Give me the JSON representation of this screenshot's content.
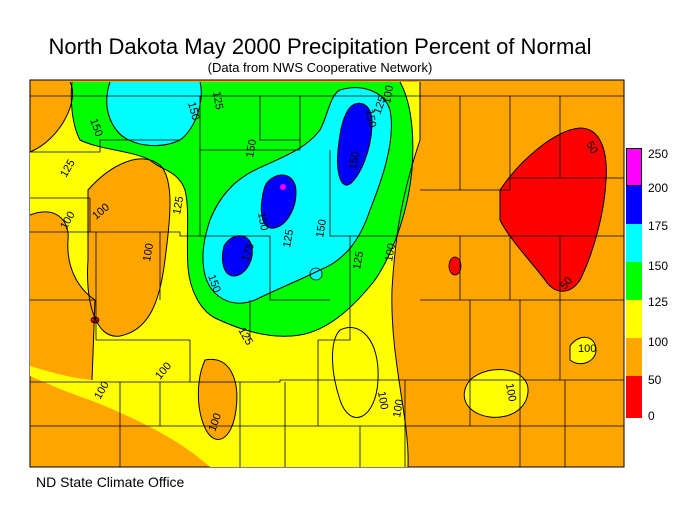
{
  "title": "North Dakota May 2000 Precipitation Percent of Normal",
  "subtitle": "(Data from NWS Cooperative Network)",
  "footer": "ND State Climate Office",
  "legend": {
    "levels": [
      {
        "label": "250",
        "color": "#ff00ff"
      },
      {
        "label": "200",
        "color": "#0000ff"
      },
      {
        "label": "175",
        "color": "#00ffff"
      },
      {
        "label": "150",
        "color": "#00ff00"
      },
      {
        "label": "125",
        "color": "#ffff00"
      },
      {
        "label": "100",
        "color": "#ffa500"
      },
      {
        "label": "50",
        "color": "#ff0000"
      },
      {
        "label": "0",
        "color": "#ff0000"
      }
    ]
  },
  "contour_labels": [
    "150",
    "150",
    "125",
    "100",
    "125",
    "150",
    "150",
    "150",
    "125",
    "150",
    "100",
    "100",
    "100",
    "125",
    "100",
    "150",
    "125",
    "125",
    "175",
    "150",
    "125",
    "100",
    "100",
    "100",
    "100",
    "100",
    "100",
    "100",
    "50",
    "50",
    "100",
    "100"
  ]
}
